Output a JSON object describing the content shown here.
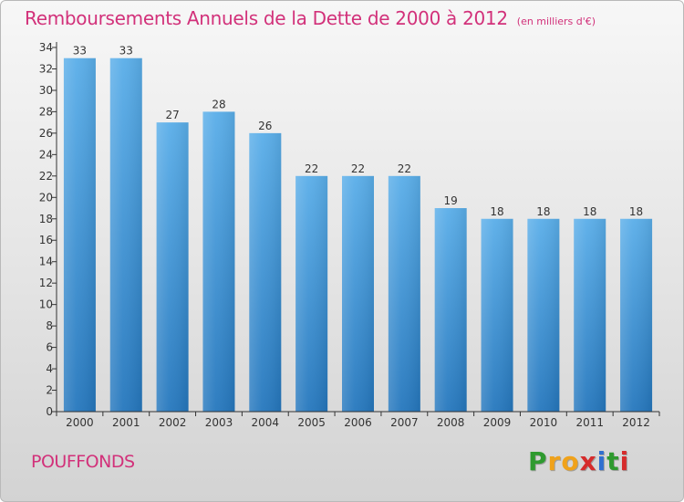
{
  "header": {
    "title": "Remboursements Annuels de la Dette de 2000 à 2012",
    "subtitle": "(en milliers d'€)"
  },
  "footer": {
    "location": "POUFFONDS",
    "logo_letters": [
      "P",
      "r",
      "o",
      "x",
      "i",
      "t",
      "i"
    ],
    "logo_colors": [
      "#2f9a2f",
      "#f0a21a",
      "#f0a21a",
      "#d62c2c",
      "#2f6fd0",
      "#2f9a2f",
      "#d62c2c"
    ]
  },
  "colors": {
    "bar_top": "#5aaee9",
    "bar_bottom": "#2577bd",
    "title": "#d2317a",
    "axis": "#333333"
  },
  "chart_data": {
    "type": "bar",
    "categories": [
      "2000",
      "2001",
      "2002",
      "2003",
      "2004",
      "2005",
      "2006",
      "2007",
      "2008",
      "2009",
      "2010",
      "2011",
      "2012"
    ],
    "values": [
      33,
      33,
      27,
      28,
      26,
      22,
      22,
      22,
      19,
      18,
      18,
      18,
      18
    ],
    "value_labels": [
      "33",
      "33",
      "27",
      "28",
      "26",
      "22",
      "22",
      "22",
      "19",
      "18",
      "18",
      "18",
      "18"
    ],
    "ylim": [
      0,
      34
    ],
    "yticks": [
      0,
      2,
      4,
      6,
      8,
      10,
      12,
      14,
      16,
      18,
      20,
      22,
      24,
      26,
      28,
      30,
      32,
      34
    ],
    "ytick_labels": [
      "0",
      "2",
      "4",
      "6",
      "8",
      "10",
      "12",
      "14",
      "16",
      "18",
      "20",
      "22",
      "24",
      "26",
      "28",
      "30",
      "32",
      "34"
    ],
    "grid": false,
    "legend": "none"
  }
}
